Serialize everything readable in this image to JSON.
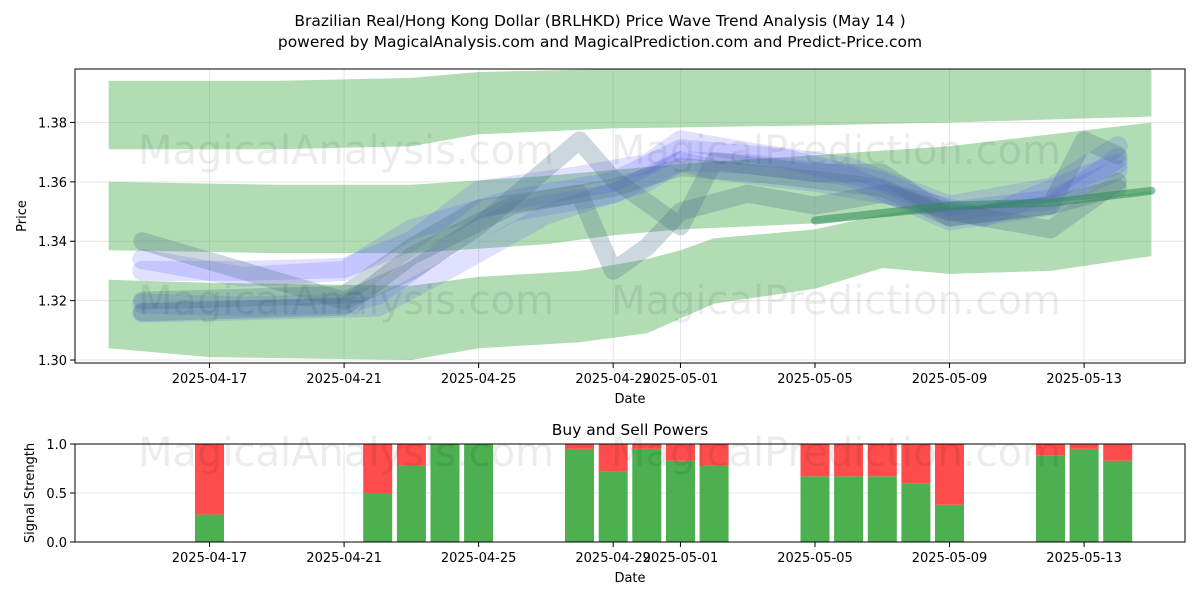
{
  "title_line1": "Brazilian Real/Hong Kong Dollar (BRLHKD) Price Wave Trend Analysis (May 14 )",
  "title_line2": "powered by MagicalAnalysis.com and MagicalPrediction.com and Predict-Price.com",
  "watermarks": [
    "MagicalAnalysis.com",
    "MagicalPrediction.com"
  ],
  "colors": {
    "green_band": "#4caf50",
    "blue_band": "#4a4aff",
    "slate_band": "#4a6f8a",
    "buy": "#4caf50",
    "sell": "#ff4d4d",
    "grid": "#e6e6e6",
    "trend_line": "#2e8b57"
  },
  "chart_data": [
    {
      "type": "area",
      "title": "",
      "xlabel": "Date",
      "ylabel": "Price",
      "ylim": [
        1.299,
        1.398
      ],
      "yticks": [
        1.3,
        1.32,
        1.34,
        1.36,
        1.38
      ],
      "ytick_labels": [
        "1.30",
        "1.32",
        "1.34",
        "1.36",
        "1.38"
      ],
      "xticks": [
        "2025-04-17",
        "2025-04-21",
        "2025-04-25",
        "2025-04-29",
        "2025-05-01",
        "2025-05-05",
        "2025-05-09",
        "2025-05-13"
      ],
      "x_range": [
        "2025-04-13",
        "2025-05-16"
      ],
      "grid": true,
      "green_bands": [
        {
          "name": "upper",
          "x": [
            "2025-04-14",
            "2025-04-19",
            "2025-04-23",
            "2025-04-25",
            "2025-04-29",
            "2025-05-05",
            "2025-05-09",
            "2025-05-15"
          ],
          "low": [
            1.371,
            1.371,
            1.372,
            1.376,
            1.378,
            1.379,
            1.38,
            1.382
          ],
          "high": [
            1.394,
            1.394,
            1.395,
            1.397,
            1.398,
            1.398,
            1.398,
            1.398
          ]
        },
        {
          "name": "middle",
          "x": [
            "2025-04-14",
            "2025-04-19",
            "2025-04-23",
            "2025-04-27",
            "2025-04-29",
            "2025-05-01",
            "2025-05-05",
            "2025-05-09",
            "2025-05-15"
          ],
          "low": [
            1.337,
            1.336,
            1.336,
            1.339,
            1.342,
            1.344,
            1.346,
            1.35,
            1.356
          ],
          "high": [
            1.36,
            1.359,
            1.359,
            1.362,
            1.364,
            1.366,
            1.369,
            1.372,
            1.38
          ]
        },
        {
          "name": "lower",
          "x": [
            "2025-04-14",
            "2025-04-17",
            "2025-04-23",
            "2025-04-25",
            "2025-04-28",
            "2025-04-30",
            "2025-05-01",
            "2025-05-02",
            "2025-05-05",
            "2025-05-07",
            "2025-05-09",
            "2025-05-12",
            "2025-05-15"
          ],
          "low": [
            1.304,
            1.301,
            1.3,
            1.304,
            1.306,
            1.309,
            1.314,
            1.319,
            1.324,
            1.331,
            1.329,
            1.33,
            1.335
          ],
          "high": [
            1.327,
            1.326,
            1.325,
            1.328,
            1.33,
            1.334,
            1.337,
            1.341,
            1.344,
            1.349,
            1.352,
            1.352,
            1.357
          ]
        }
      ],
      "blue_paths": [
        {
          "x": [
            "2025-04-15",
            "2025-04-18",
            "2025-04-21",
            "2025-04-22",
            "2025-04-24",
            "2025-04-26",
            "2025-04-29",
            "2025-05-01",
            "2025-05-03",
            "2025-05-06",
            "2025-05-09",
            "2025-05-12",
            "2025-05-14"
          ],
          "y": [
            1.319,
            1.318,
            1.319,
            1.322,
            1.338,
            1.35,
            1.356,
            1.367,
            1.366,
            1.362,
            1.347,
            1.352,
            1.368
          ]
        },
        {
          "x": [
            "2025-04-15",
            "2025-04-18",
            "2025-04-21",
            "2025-04-23",
            "2025-04-25",
            "2025-04-28",
            "2025-04-30",
            "2025-05-01",
            "2025-05-03",
            "2025-05-06",
            "2025-05-09",
            "2025-05-12",
            "2025-05-14"
          ],
          "y": [
            1.33,
            1.33,
            1.331,
            1.34,
            1.357,
            1.362,
            1.366,
            1.374,
            1.37,
            1.365,
            1.352,
            1.358,
            1.372
          ]
        },
        {
          "x": [
            "2025-04-15",
            "2025-04-19",
            "2025-04-22",
            "2025-04-24",
            "2025-04-27",
            "2025-04-30",
            "2025-05-01",
            "2025-05-02",
            "2025-05-05",
            "2025-05-08",
            "2025-05-10",
            "2025-05-13",
            "2025-05-14"
          ],
          "y": [
            1.316,
            1.317,
            1.318,
            1.33,
            1.349,
            1.36,
            1.367,
            1.364,
            1.36,
            1.354,
            1.348,
            1.362,
            1.366
          ]
        },
        {
          "x": [
            "2025-04-15",
            "2025-04-18",
            "2025-04-21",
            "2025-04-23",
            "2025-04-26",
            "2025-04-29",
            "2025-05-01",
            "2025-05-04",
            "2025-05-07",
            "2025-05-09",
            "2025-05-12",
            "2025-05-14"
          ],
          "y": [
            1.334,
            1.328,
            1.33,
            1.344,
            1.354,
            1.36,
            1.371,
            1.368,
            1.36,
            1.35,
            1.354,
            1.364
          ]
        }
      ],
      "slate_paths": [
        {
          "x": [
            "2025-04-15",
            "2025-04-18",
            "2025-04-21",
            "2025-04-23",
            "2025-04-25",
            "2025-04-28",
            "2025-04-29",
            "2025-05-01",
            "2025-05-02",
            "2025-05-05",
            "2025-05-07",
            "2025-05-09",
            "2025-05-12",
            "2025-05-13",
            "2025-05-14"
          ],
          "y": [
            1.34,
            1.33,
            1.32,
            1.33,
            1.345,
            1.374,
            1.361,
            1.345,
            1.367,
            1.363,
            1.363,
            1.348,
            1.352,
            1.374,
            1.369
          ]
        },
        {
          "x": [
            "2025-04-15",
            "2025-04-18",
            "2025-04-21",
            "2025-04-23",
            "2025-04-25",
            "2025-04-28",
            "2025-04-29",
            "2025-04-30",
            "2025-05-01",
            "2025-05-03",
            "2025-05-05",
            "2025-05-07",
            "2025-05-09",
            "2025-05-12",
            "2025-05-14"
          ],
          "y": [
            1.32,
            1.321,
            1.322,
            1.338,
            1.351,
            1.356,
            1.33,
            1.338,
            1.35,
            1.356,
            1.352,
            1.356,
            1.35,
            1.344,
            1.36
          ]
        },
        {
          "x": [
            "2025-04-15",
            "2025-04-18",
            "2025-04-21",
            "2025-04-23",
            "2025-04-26",
            "2025-04-29",
            "2025-05-01",
            "2025-05-04",
            "2025-05-07",
            "2025-05-09",
            "2025-05-12",
            "2025-05-14"
          ],
          "y": [
            1.316,
            1.317,
            1.318,
            1.335,
            1.352,
            1.358,
            1.365,
            1.362,
            1.358,
            1.348,
            1.352,
            1.358
          ]
        }
      ],
      "trend_line": {
        "x": [
          "2025-05-05",
          "2025-05-09",
          "2025-05-12",
          "2025-05-15"
        ],
        "y": [
          1.347,
          1.352,
          1.353,
          1.357
        ]
      }
    },
    {
      "type": "bar",
      "title": "Buy and Sell Powers",
      "xlabel": "Date",
      "ylabel": "Signal Strength",
      "ylim": [
        0,
        1.0
      ],
      "yticks": [
        0.0,
        0.5,
        1.0
      ],
      "ytick_labels": [
        "0.0",
        "0.5",
        "1.0"
      ],
      "xticks": [
        "2025-04-17",
        "2025-04-21",
        "2025-04-25",
        "2025-04-29",
        "2025-05-01",
        "2025-05-05",
        "2025-05-09",
        "2025-05-13"
      ],
      "x_range": [
        "2025-04-13",
        "2025-05-16"
      ],
      "grid": true,
      "categories": [
        "2025-04-17",
        "2025-04-22",
        "2025-04-23",
        "2025-04-24",
        "2025-04-25",
        "2025-04-28",
        "2025-04-29",
        "2025-04-30",
        "2025-05-01",
        "2025-05-02",
        "2025-05-05",
        "2025-05-06",
        "2025-05-07",
        "2025-05-08",
        "2025-05-09",
        "2025-05-12",
        "2025-05-13",
        "2025-05-14"
      ],
      "series": [
        {
          "name": "Buy",
          "values": [
            0.28,
            0.5,
            0.78,
            1.0,
            1.0,
            0.95,
            0.72,
            0.95,
            0.83,
            0.78,
            0.67,
            0.67,
            0.67,
            0.6,
            0.38,
            0.88,
            0.95,
            0.83
          ]
        },
        {
          "name": "Sell",
          "values": [
            0.72,
            0.5,
            0.22,
            0.0,
            0.0,
            0.05,
            0.28,
            0.05,
            0.17,
            0.22,
            0.33,
            0.33,
            0.33,
            0.4,
            0.62,
            0.12,
            0.05,
            0.17
          ]
        }
      ]
    }
  ]
}
